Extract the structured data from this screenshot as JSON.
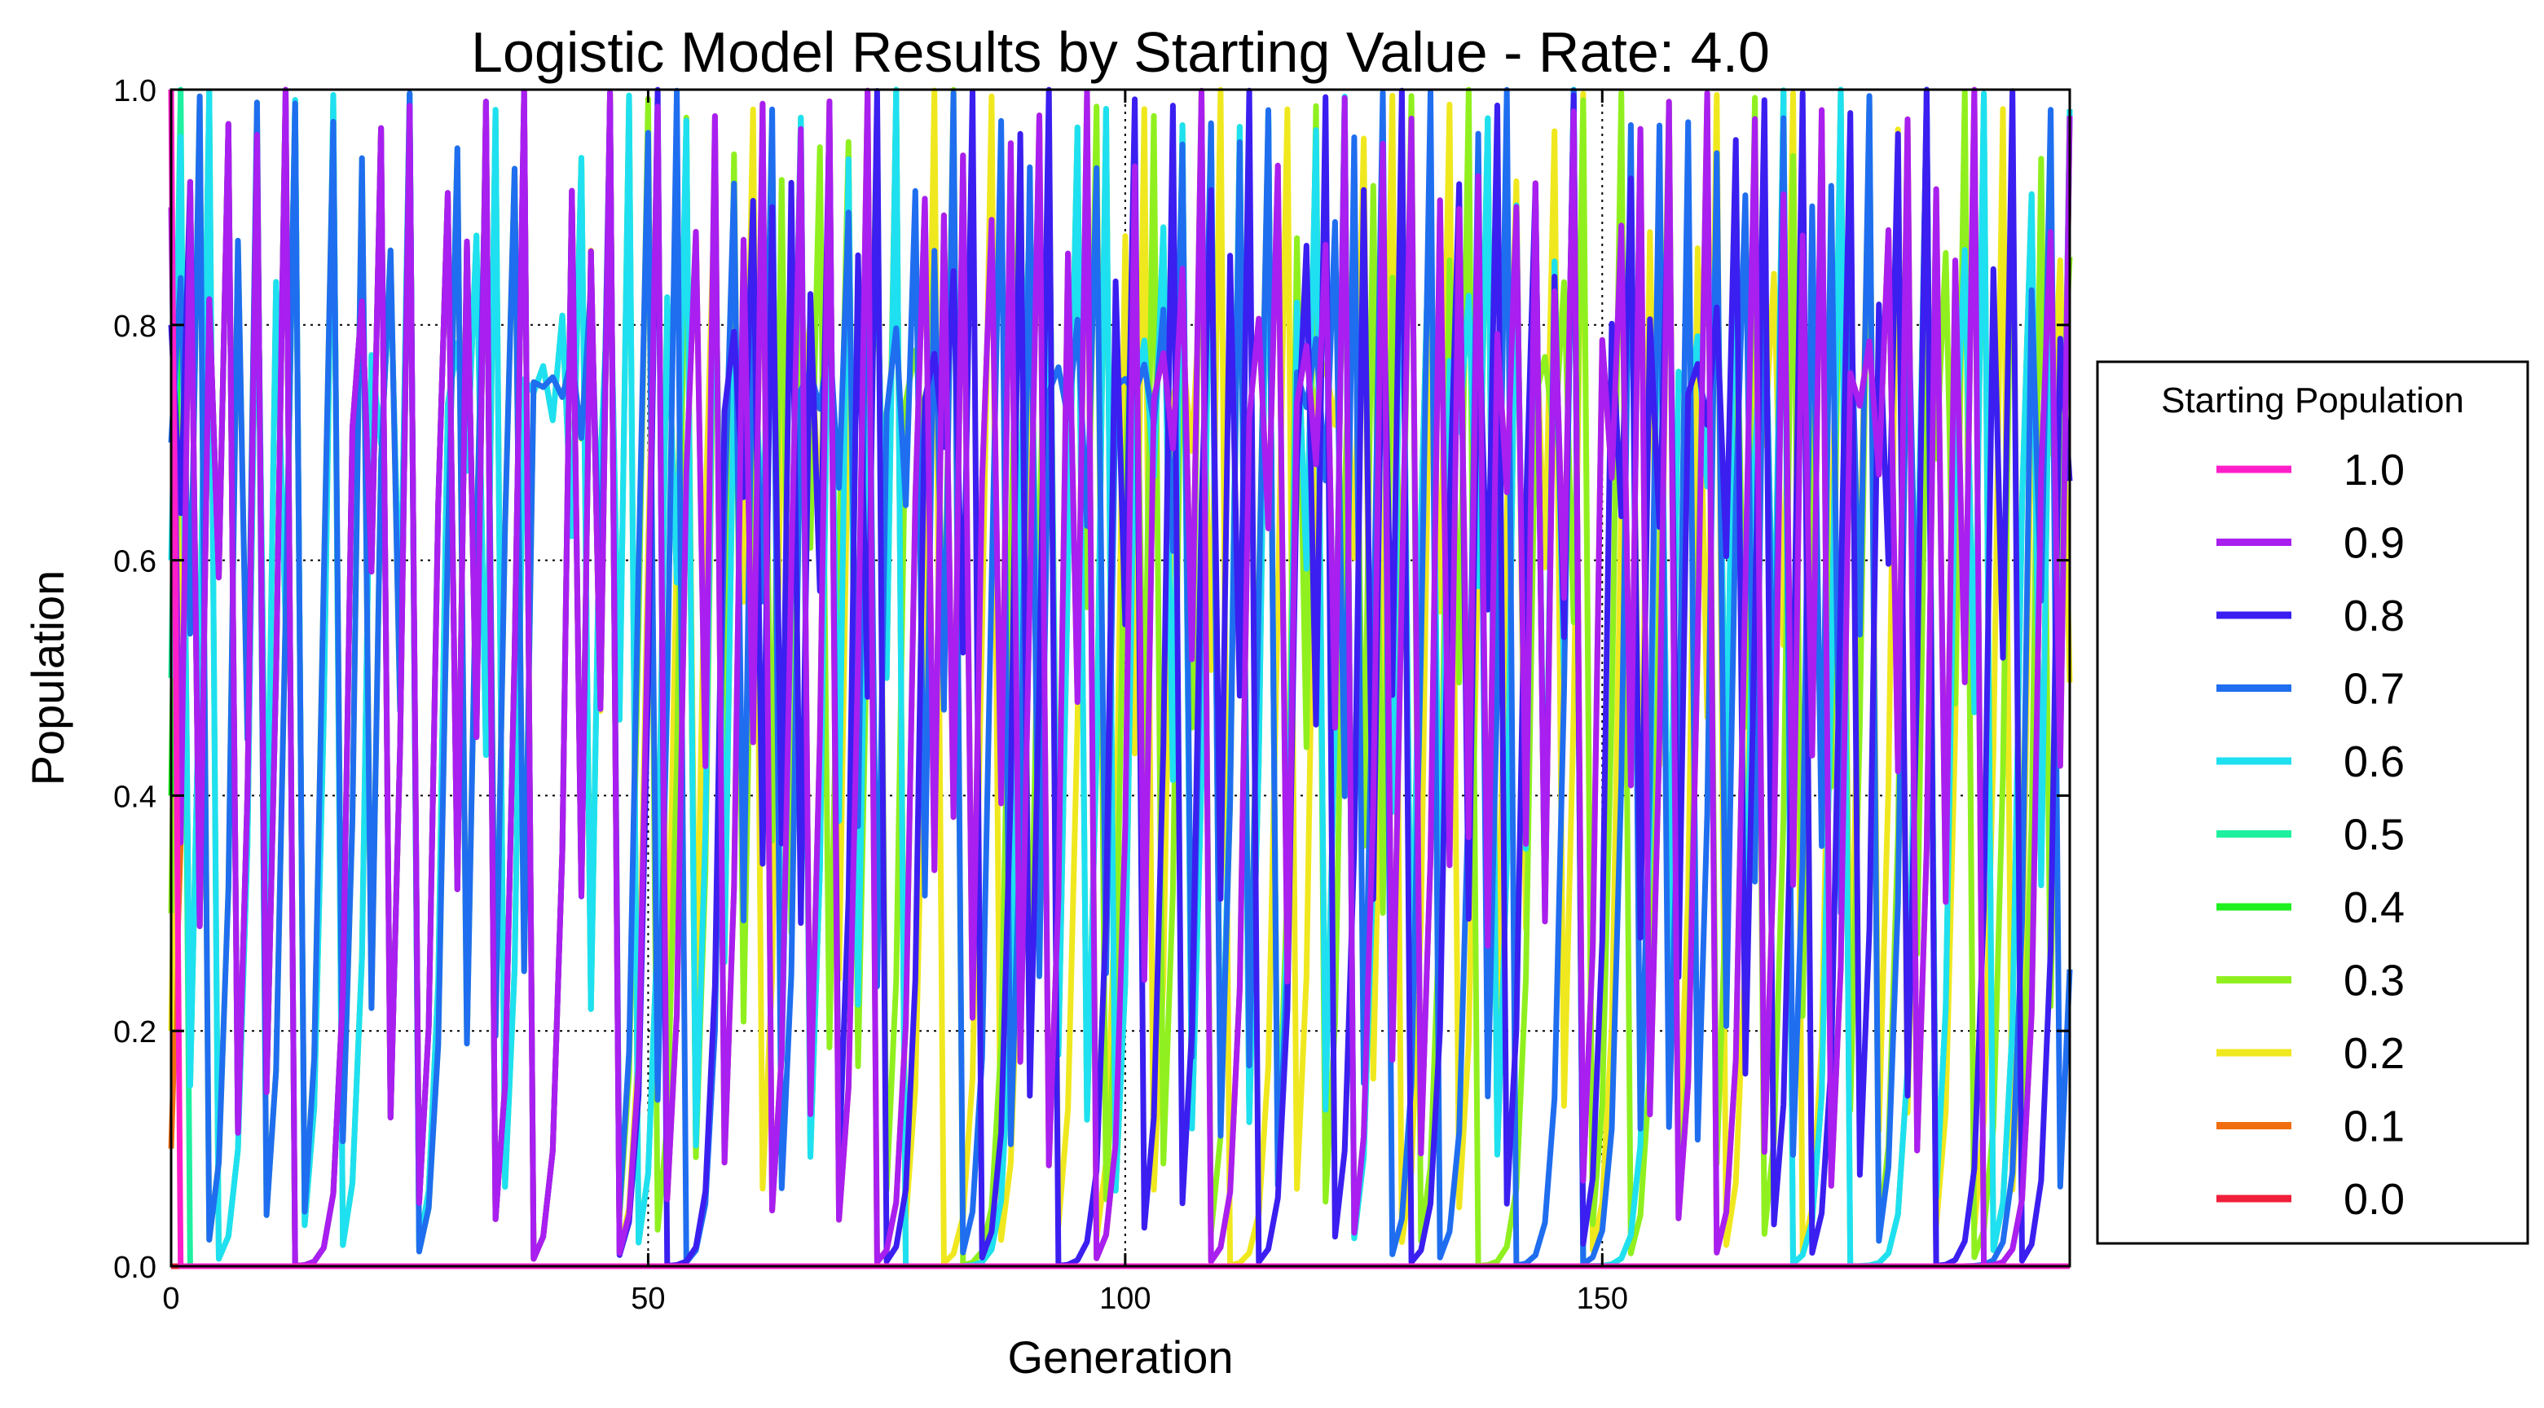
{
  "chart_data": {
    "type": "line",
    "title": "Logistic Model Results by Starting Value - Rate: 4.0",
    "xlabel": "Generation",
    "ylabel": "Population",
    "xlim": [
      0,
      199
    ],
    "ylim": [
      0.0,
      1.0
    ],
    "x_ticks": [
      0,
      50,
      100,
      150
    ],
    "y_ticks": [
      0.0,
      0.2,
      0.4,
      0.6,
      0.8,
      1.0
    ],
    "x_tick_labels": [
      "0",
      "50",
      "100",
      "150"
    ],
    "y_tick_labels": [
      "0.0",
      "0.2",
      "0.4",
      "0.6",
      "0.8",
      "1.0"
    ],
    "grid": true,
    "rate": 4.0,
    "generations": 200,
    "legend": {
      "title": "Starting Population",
      "placement": "outside-right"
    },
    "series": [
      {
        "name": "1.0",
        "start": 1.0,
        "color": "#ff1fc8"
      },
      {
        "name": "0.9",
        "start": 0.9,
        "color": "#a81ff0"
      },
      {
        "name": "0.8",
        "start": 0.8,
        "color": "#3a1ff0"
      },
      {
        "name": "0.7",
        "start": 0.7,
        "color": "#1f6ef0"
      },
      {
        "name": "0.6",
        "start": 0.6,
        "color": "#1fe0f0"
      },
      {
        "name": "0.5",
        "start": 0.5,
        "color": "#1ff0a0"
      },
      {
        "name": "0.4",
        "start": 0.4,
        "color": "#1ff01f"
      },
      {
        "name": "0.3",
        "start": 0.3,
        "color": "#90f01f"
      },
      {
        "name": "0.2",
        "start": 0.2,
        "color": "#f0e81f"
      },
      {
        "name": "0.1",
        "start": 0.1,
        "color": "#f06e10"
      },
      {
        "name": "0.0",
        "start": 0.0,
        "color": "#f01f3a"
      }
    ]
  }
}
